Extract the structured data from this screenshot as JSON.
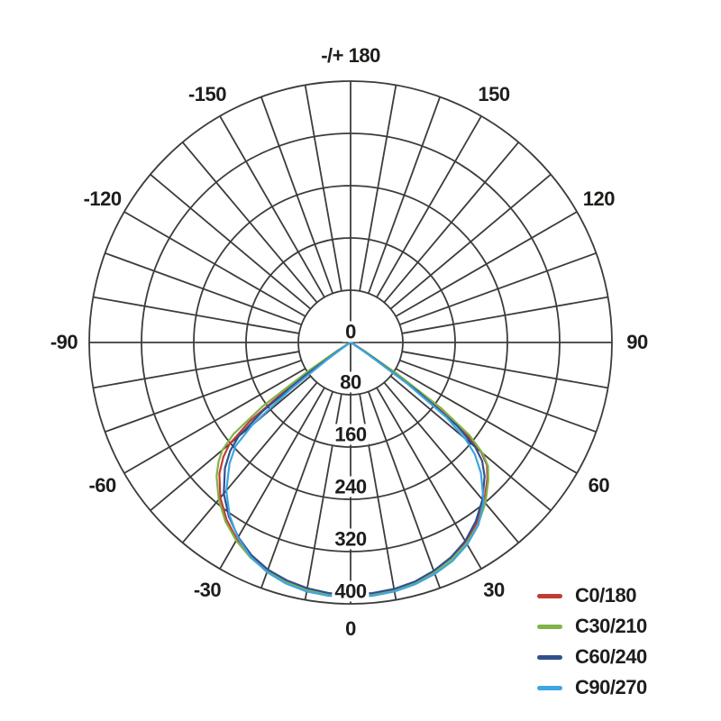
{
  "figure": {
    "background": "#ffffff",
    "text_color": "#1d1d1b",
    "grid_color": "#3c3c3c"
  },
  "chart_data": {
    "type": "line",
    "subtype": "polar-photometric-distribution",
    "title": "",
    "angle_convention": "0 deg at bottom (nadir), +/-90 deg horizontal, +/-180 deg at top",
    "angular_grid_step_deg": 10,
    "angular_tick_step_deg": 30,
    "angular_tick_labels": [
      {
        "angle": 180,
        "label": "-/+ 180"
      },
      {
        "angle": -150,
        "label": "-150"
      },
      {
        "angle": -120,
        "label": "-120"
      },
      {
        "angle": -90,
        "label": "-90"
      },
      {
        "angle": -60,
        "label": "-60"
      },
      {
        "angle": -30,
        "label": "-30"
      },
      {
        "angle": 0,
        "label": "0"
      },
      {
        "angle": 30,
        "label": "30"
      },
      {
        "angle": 60,
        "label": "60"
      },
      {
        "angle": 90,
        "label": "90"
      },
      {
        "angle": 120,
        "label": "120"
      },
      {
        "angle": 150,
        "label": "150"
      }
    ],
    "radial_ticks": [
      0,
      80,
      160,
      240,
      320,
      400
    ],
    "rmax": 400,
    "grid": {
      "rings": [
        80,
        160,
        240,
        320,
        400
      ],
      "spokes_every_deg": 10,
      "full_axes_deg": [
        0,
        90,
        180,
        270
      ]
    },
    "legend_position": "bottom-right",
    "series": [
      {
        "name": "C0/180",
        "color": "#c23b33",
        "points": [
          [
            -70,
            0
          ],
          [
            -65,
            1
          ],
          [
            -62,
            2
          ],
          [
            -60,
            4
          ],
          [
            -58,
            9
          ],
          [
            -56,
            32
          ],
          [
            -54,
            112
          ],
          [
            -52,
            196
          ],
          [
            -50,
            242
          ],
          [
            -48,
            262
          ],
          [
            -45,
            284
          ],
          [
            -40,
            310
          ],
          [
            -35,
            331
          ],
          [
            -30,
            348
          ],
          [
            -25,
            362
          ],
          [
            -20,
            372
          ],
          [
            -15,
            379
          ],
          [
            -10,
            384
          ],
          [
            -5,
            386
          ],
          [
            0,
            387
          ],
          [
            5,
            386
          ],
          [
            10,
            384
          ],
          [
            15,
            380
          ],
          [
            20,
            374
          ],
          [
            25,
            365
          ],
          [
            30,
            353
          ],
          [
            35,
            337
          ],
          [
            40,
            318
          ],
          [
            45,
            296
          ],
          [
            48,
            281
          ],
          [
            50,
            261
          ],
          [
            52,
            220
          ],
          [
            54,
            140
          ],
          [
            56,
            50
          ],
          [
            58,
            13
          ],
          [
            60,
            5
          ],
          [
            62,
            2
          ],
          [
            65,
            1
          ],
          [
            70,
            0
          ]
        ]
      },
      {
        "name": "C30/210",
        "color": "#82b348",
        "points": [
          [
            -70,
            0
          ],
          [
            -65,
            2
          ],
          [
            -62,
            5
          ],
          [
            -60,
            9
          ],
          [
            -58,
            24
          ],
          [
            -56,
            78
          ],
          [
            -54,
            166
          ],
          [
            -52,
            227
          ],
          [
            -50,
            256
          ],
          [
            -48,
            272
          ],
          [
            -45,
            290
          ],
          [
            -40,
            314
          ],
          [
            -35,
            334
          ],
          [
            -30,
            350
          ],
          [
            -25,
            363
          ],
          [
            -20,
            373
          ],
          [
            -15,
            380
          ],
          [
            -10,
            384
          ],
          [
            -5,
            386
          ],
          [
            0,
            386
          ],
          [
            5,
            386
          ],
          [
            10,
            384
          ],
          [
            15,
            380
          ],
          [
            20,
            374
          ],
          [
            25,
            366
          ],
          [
            30,
            355
          ],
          [
            35,
            340
          ],
          [
            40,
            321
          ],
          [
            45,
            298
          ],
          [
            48,
            283
          ],
          [
            50,
            264
          ],
          [
            52,
            231
          ],
          [
            54,
            172
          ],
          [
            56,
            86
          ],
          [
            58,
            29
          ],
          [
            60,
            11
          ],
          [
            62,
            5
          ],
          [
            65,
            2
          ],
          [
            70,
            0
          ]
        ]
      },
      {
        "name": "C60/240",
        "color": "#31508f",
        "points": [
          [
            -70,
            0
          ],
          [
            -65,
            1
          ],
          [
            -62,
            2
          ],
          [
            -60,
            3
          ],
          [
            -58,
            7
          ],
          [
            -56,
            22
          ],
          [
            -54,
            88
          ],
          [
            -52,
            170
          ],
          [
            -50,
            224
          ],
          [
            -48,
            248
          ],
          [
            -45,
            272
          ],
          [
            -40,
            302
          ],
          [
            -35,
            325
          ],
          [
            -30,
            344
          ],
          [
            -25,
            359
          ],
          [
            -20,
            370
          ],
          [
            -15,
            377
          ],
          [
            -10,
            382
          ],
          [
            -5,
            385
          ],
          [
            0,
            385
          ],
          [
            5,
            385
          ],
          [
            10,
            383
          ],
          [
            15,
            379
          ],
          [
            20,
            372
          ],
          [
            25,
            363
          ],
          [
            30,
            351
          ],
          [
            35,
            334
          ],
          [
            40,
            314
          ],
          [
            45,
            290
          ],
          [
            48,
            271
          ],
          [
            50,
            249
          ],
          [
            52,
            206
          ],
          [
            54,
            126
          ],
          [
            56,
            42
          ],
          [
            58,
            11
          ],
          [
            60,
            4
          ],
          [
            62,
            2
          ],
          [
            65,
            1
          ],
          [
            70,
            0
          ]
        ]
      },
      {
        "name": "C90/270",
        "color": "#3da5e0",
        "points": [
          [
            -70,
            0
          ],
          [
            -65,
            1
          ],
          [
            -62,
            1
          ],
          [
            -60,
            2
          ],
          [
            -58,
            5
          ],
          [
            -56,
            13
          ],
          [
            -54,
            42
          ],
          [
            -52,
            116
          ],
          [
            -50,
            196
          ],
          [
            -48,
            237
          ],
          [
            -45,
            262
          ],
          [
            -40,
            296
          ],
          [
            -35,
            323
          ],
          [
            -30,
            345
          ],
          [
            -25,
            362
          ],
          [
            -20,
            374
          ],
          [
            -15,
            382
          ],
          [
            -10,
            387
          ],
          [
            -5,
            389
          ],
          [
            0,
            390
          ],
          [
            5,
            389
          ],
          [
            10,
            387
          ],
          [
            15,
            383
          ],
          [
            20,
            377
          ],
          [
            25,
            369
          ],
          [
            30,
            357
          ],
          [
            35,
            341
          ],
          [
            40,
            317
          ],
          [
            45,
            282
          ],
          [
            48,
            256
          ],
          [
            50,
            229
          ],
          [
            52,
            186
          ],
          [
            54,
            106
          ],
          [
            56,
            31
          ],
          [
            58,
            8
          ],
          [
            60,
            3
          ],
          [
            62,
            1
          ],
          [
            65,
            1
          ],
          [
            70,
            0
          ]
        ]
      }
    ]
  }
}
